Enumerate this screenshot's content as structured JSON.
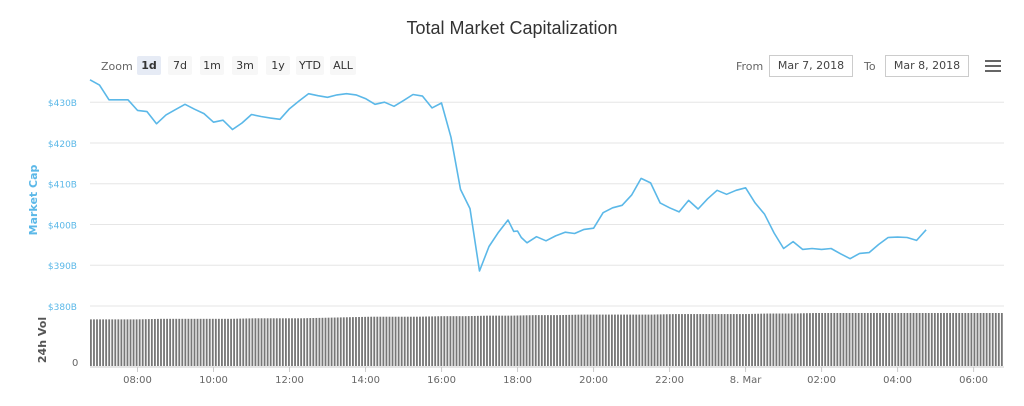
{
  "chart_data": {
    "type": "line",
    "title": "Total Market Capitalization",
    "ylabel": "Market Cap",
    "volume_label": "24h Vol",
    "volume_tick": "0",
    "y_ticks": [
      "$380B",
      "$390B",
      "$400B",
      "$410B",
      "$420B",
      "$430B"
    ],
    "ylim": [
      380,
      433
    ],
    "x_ticks": [
      "08:00",
      "10:00",
      "12:00",
      "14:00",
      "16:00",
      "18:00",
      "20:00",
      "22:00",
      "8. Mar",
      "02:00",
      "04:00",
      "06:00"
    ],
    "x_tick_hours": [
      8,
      10,
      12,
      14,
      16,
      18,
      20,
      22,
      24,
      26,
      28,
      30
    ],
    "xlim_hours": [
      6.75,
      30.8
    ],
    "series": [
      {
        "values_x_hours": [
          6.75,
          7.0,
          7.25,
          7.5,
          7.75,
          8.0,
          8.25,
          8.5,
          8.75,
          9.0,
          9.25,
          9.5,
          9.75,
          10.0,
          10.25,
          10.5,
          10.75,
          11.0,
          11.25,
          11.5,
          11.75,
          12.0,
          12.25,
          12.5,
          12.75,
          13.0,
          13.25,
          13.5,
          13.75,
          14.0,
          14.25,
          14.5,
          14.75,
          15.0,
          15.25,
          15.5,
          15.75,
          16.0,
          16.25,
          16.5,
          16.75,
          17.0,
          17.25,
          17.5,
          17.75,
          17.9,
          18.0,
          18.1,
          18.25,
          18.5,
          18.75,
          19.0,
          19.25,
          19.5,
          19.75,
          20.0,
          20.25,
          20.5,
          20.75,
          21.0,
          21.25,
          21.5,
          21.75,
          22.0,
          22.25,
          22.5,
          22.75,
          23.0,
          23.25,
          23.5,
          23.75,
          24.0,
          24.25,
          24.5,
          24.75,
          25.0,
          25.25,
          25.5,
          25.75,
          26.0,
          26.25,
          26.5,
          26.75,
          27.0,
          27.25,
          27.5,
          27.75,
          28.0,
          28.25,
          28.5,
          28.75,
          29.0,
          29.25,
          29.5,
          29.75,
          30.0,
          30.25,
          30.5,
          30.8
        ],
        "values": [
          435.5,
          434.2,
          430.6,
          430.6,
          430.6,
          428,
          427.7,
          424.7,
          426.9,
          428.2,
          429.5,
          428.3,
          427.2,
          425.1,
          425.6,
          423.3,
          424.9,
          427,
          426.5,
          426.1,
          425.8,
          428.4,
          430.3,
          432.1,
          431.6,
          431.2,
          431.8,
          432.1,
          431.8,
          430.9,
          429.5,
          430,
          429,
          430.4,
          431.9,
          431.5,
          428.6,
          429.8,
          421.4,
          408.6,
          403.9,
          388.6,
          394.6,
          398.1,
          401.1,
          398.3,
          398.4,
          396.8,
          395.5,
          397,
          396,
          397.2,
          398.1,
          397.8,
          398.8,
          399.1,
          402.9,
          404.1,
          404.7,
          407.2,
          411.3,
          410.2,
          405.3,
          404.1,
          403.1,
          405.9,
          403.8,
          406.3,
          408.4,
          407.4,
          408.4,
          409,
          405.3,
          402.5,
          397.9,
          394.1,
          395.8,
          393.9,
          394.1,
          393.9,
          394.1,
          392.8,
          391.6,
          392.9,
          393.1,
          395.1,
          396.8,
          396.9,
          396.8,
          396.1,
          398.7
        ]
      }
    ],
    "volume_relative": [
      0.88,
      0.88,
      0.88,
      0.89,
      0.89,
      0.89,
      0.89,
      0.9,
      0.9,
      0.9,
      0.91,
      0.92,
      0.93,
      0.93,
      0.93,
      0.94,
      0.94,
      0.95,
      0.95,
      0.96,
      0.96,
      0.97,
      0.97,
      0.97,
      0.97,
      0.98,
      0.98,
      0.98,
      0.98,
      0.99,
      0.99,
      1.0,
      1.0,
      1.0,
      1.0,
      1.0,
      1.0,
      1.0,
      1.0,
      1.0
    ],
    "colors": {
      "line": "#5bb8e8",
      "axis_text": "#5bb8e8",
      "volume_bar": "#777777",
      "grid": "#e6e6e6"
    }
  },
  "toolbar": {
    "zoom_label": "Zoom",
    "zoom_buttons": [
      "1d",
      "7d",
      "1m",
      "3m",
      "1y",
      "YTD",
      "ALL"
    ],
    "active_zoom": "1d",
    "from_label": "From",
    "from_value": "Mar 7, 2018",
    "to_label": "To",
    "to_value": "Mar 8, 2018",
    "menu_icon": "hamburger-menu-icon"
  }
}
